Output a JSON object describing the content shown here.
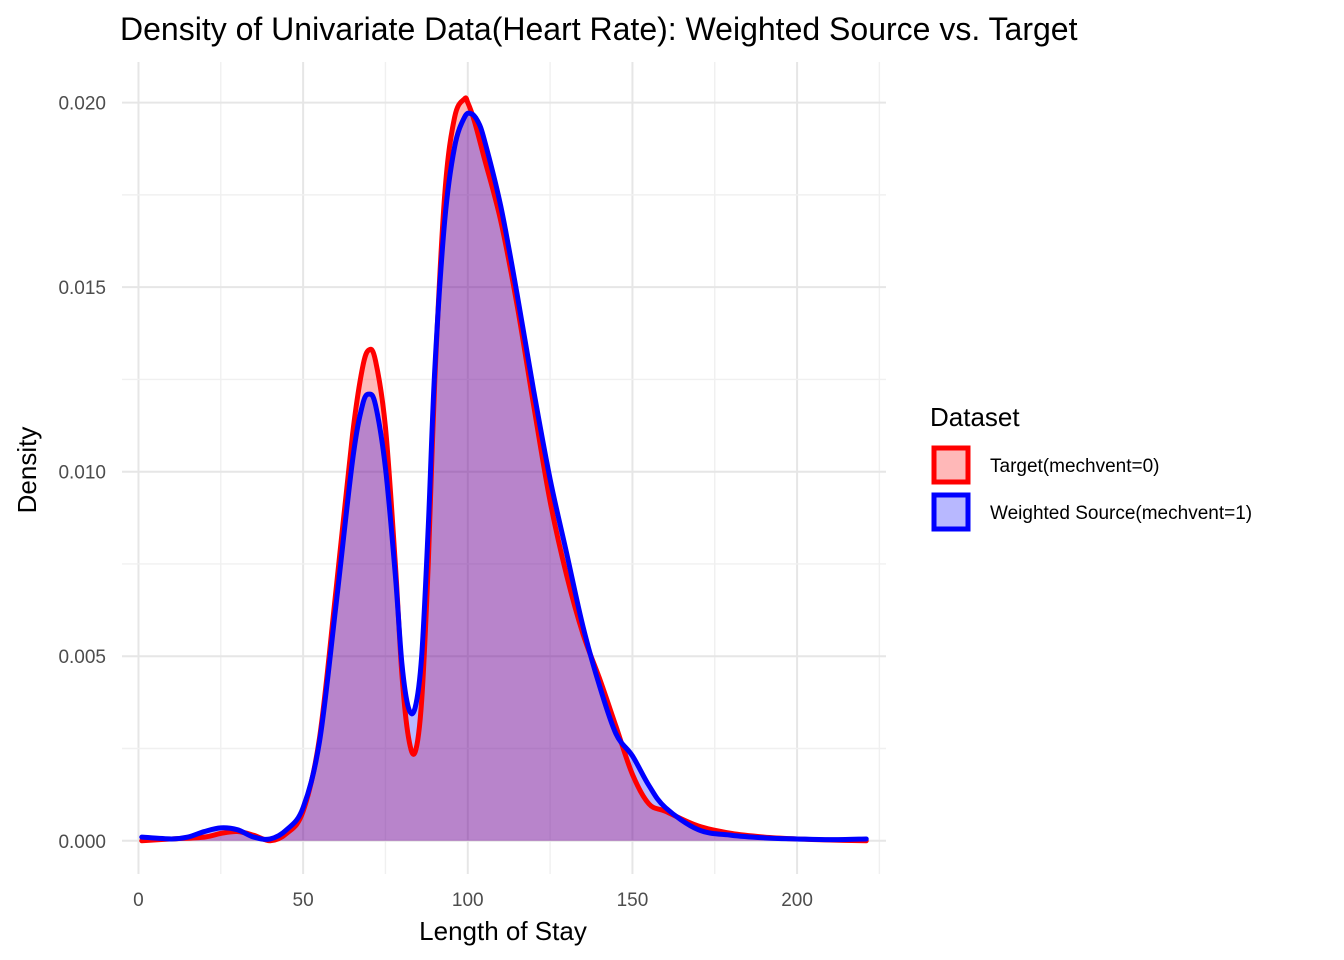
{
  "chart_data": {
    "type": "area",
    "title": "Density of Univariate Data(Heart Rate): Weighted Source vs. Target",
    "xlabel": "Length of Stay",
    "ylabel": "Density",
    "xlim": [
      -5,
      227
    ],
    "ylim": [
      -0.0009,
      0.0211
    ],
    "x_ticks": [
      0,
      50,
      100,
      150,
      200
    ],
    "x_tick_labels": [
      "0",
      "50",
      "100",
      "150",
      "200"
    ],
    "y_ticks": [
      0.0,
      0.005,
      0.01,
      0.015,
      0.02
    ],
    "y_tick_labels": [
      "0.000",
      "0.005",
      "0.010",
      "0.015",
      "0.020"
    ],
    "grid": true,
    "legend": {
      "title": "Dataset",
      "position": "right"
    },
    "series": [
      {
        "name": "Target(mechvent=0)",
        "color": "#ff0000",
        "fill": "#ff0000",
        "fill_opacity": 0.28,
        "x": [
          1,
          10,
          20,
          25,
          30,
          35,
          40,
          45,
          50,
          55,
          60,
          65,
          68,
          70,
          72,
          75,
          78,
          80,
          82,
          84,
          86,
          88,
          90,
          93,
          96,
          99,
          100,
          102,
          105,
          110,
          115,
          120,
          125,
          130,
          135,
          140,
          145,
          150,
          155,
          160,
          170,
          180,
          190,
          200,
          210,
          221
        ],
        "y": [
          0.0,
          5e-05,
          0.0001,
          0.0002,
          0.00025,
          0.00015,
          0.0,
          0.0002,
          0.0008,
          0.0028,
          0.0068,
          0.011,
          0.0128,
          0.0133,
          0.013,
          0.0112,
          0.0075,
          0.0045,
          0.0028,
          0.0024,
          0.0038,
          0.0075,
          0.0125,
          0.0175,
          0.0196,
          0.0201,
          0.02,
          0.0195,
          0.0185,
          0.0168,
          0.0145,
          0.0118,
          0.0092,
          0.0072,
          0.0056,
          0.0044,
          0.0031,
          0.0018,
          0.001,
          0.0008,
          0.0004,
          0.0002,
          0.0001,
          5e-05,
          2e-05,
          0.0
        ]
      },
      {
        "name": "Weighted Source(mechvent=1)",
        "color": "#0000ff",
        "fill": "#0000ff",
        "fill_opacity": 0.28,
        "x": [
          1,
          10,
          15,
          20,
          25,
          30,
          35,
          40,
          45,
          50,
          55,
          60,
          65,
          68,
          70,
          72,
          75,
          78,
          80,
          82,
          84,
          86,
          88,
          90,
          93,
          96,
          99,
          101,
          103,
          105,
          110,
          115,
          120,
          125,
          130,
          135,
          140,
          145,
          150,
          155,
          160,
          170,
          180,
          190,
          200,
          210,
          221
        ],
        "y": [
          0.0001,
          5e-05,
          0.0001,
          0.00025,
          0.00035,
          0.0003,
          0.0001,
          5e-05,
          0.0003,
          0.0009,
          0.0027,
          0.0064,
          0.0103,
          0.0118,
          0.0121,
          0.0118,
          0.0101,
          0.0072,
          0.0048,
          0.0036,
          0.0036,
          0.005,
          0.0085,
          0.0128,
          0.0168,
          0.0188,
          0.0196,
          0.0197,
          0.0195,
          0.019,
          0.0172,
          0.0148,
          0.0122,
          0.0098,
          0.0078,
          0.0058,
          0.0042,
          0.0029,
          0.0023,
          0.0015,
          0.0009,
          0.0003,
          0.00015,
          8e-05,
          5e-05,
          3e-05,
          5e-05
        ]
      }
    ]
  }
}
